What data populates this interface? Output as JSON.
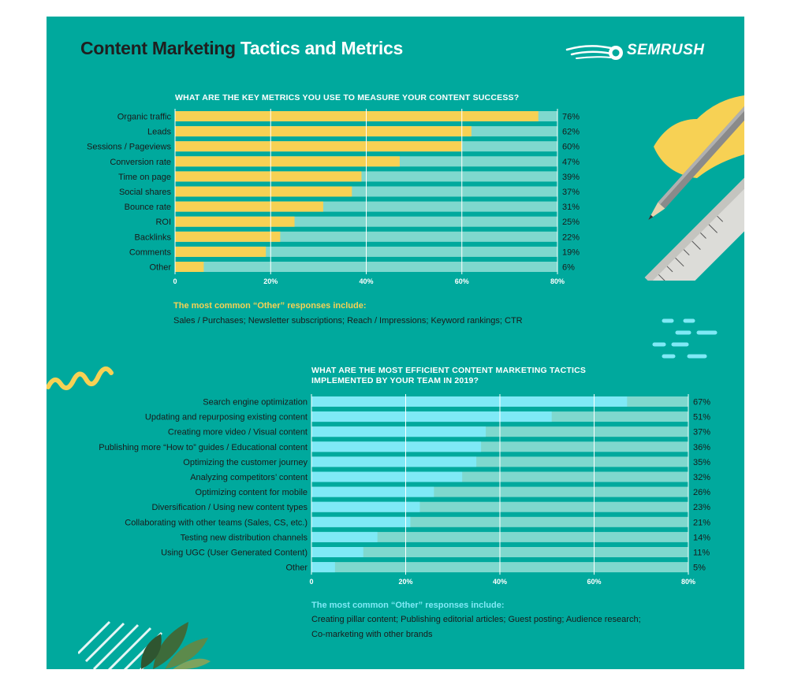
{
  "header": {
    "title_part1": "Content Marketing",
    "title_part2": "Tactics and Metrics",
    "brand": "SEMRUSH"
  },
  "colors": {
    "background": "#00a99d",
    "track": "#7fd8ce",
    "metrics_bar": "#f7d154",
    "tactics_bar": "#7fe9f6",
    "metrics_note": "#f7d154",
    "tactics_note": "#7fe9f6"
  },
  "notes": {
    "metrics_heading": "The most common “Other” responses include:",
    "metrics_body": "Sales / Purchases; Newsletter subscriptions; Reach / Impressions; Keyword rankings; CTR",
    "tactics_heading": "The most common “Other” responses include:",
    "tactics_body_line1": "Creating pillar content; Publishing editorial articles; Guest posting; Audience research;",
    "tactics_body_line2": "Co-marketing with other brands"
  },
  "chart_data": [
    {
      "type": "bar",
      "orientation": "horizontal",
      "title": "WHAT ARE THE KEY METRICS YOU USE TO MEASURE YOUR CONTENT SUCCESS?",
      "categories": [
        "Organic traffic",
        "Leads",
        "Sessions / Pageviews",
        "Conversion rate",
        "Time on page",
        "Social shares",
        "Bounce rate",
        "ROI",
        "Backlinks",
        "Comments",
        "Other"
      ],
      "values": [
        76,
        62,
        60,
        47,
        39,
        37,
        31,
        25,
        22,
        19,
        6
      ],
      "value_labels": [
        "76%",
        "62%",
        "60%",
        "47%",
        "39%",
        "37%",
        "31%",
        "25%",
        "22%",
        "19%",
        "6%"
      ],
      "xlim": [
        0,
        80
      ],
      "xticks": [
        0,
        20,
        40,
        60,
        80
      ],
      "xtick_labels": [
        "0",
        "20%",
        "40%",
        "60%",
        "80%"
      ],
      "grid": true
    },
    {
      "type": "bar",
      "orientation": "horizontal",
      "title": "WHAT ARE THE MOST EFFICIENT CONTENT MARKETING TACTICS IMPLEMENTED BY YOUR TEAM IN 2019?",
      "categories": [
        "Search engine optimization",
        "Updating and repurposing existing content",
        "Creating more video / Visual content",
        "Publishing more “How to” guides / Educational content",
        "Optimizing the customer journey",
        "Analyzing competitors’ content",
        "Optimizing content for mobile",
        "Diversification / Using new content types",
        "Collaborating with other teams (Sales, CS, etc.)",
        "Testing new distribution channels",
        "Using UGC (User Generated Content)",
        "Other"
      ],
      "values": [
        67,
        51,
        37,
        36,
        35,
        32,
        26,
        23,
        21,
        14,
        11,
        5
      ],
      "value_labels": [
        "67%",
        "51%",
        "37%",
        "36%",
        "35%",
        "32%",
        "26%",
        "23%",
        "21%",
        "14%",
        "11%",
        "5%"
      ],
      "xlim": [
        0,
        80
      ],
      "xticks": [
        0,
        20,
        40,
        60,
        80
      ],
      "xtick_labels": [
        "0",
        "20%",
        "40%",
        "60%",
        "80%"
      ],
      "grid": true
    }
  ]
}
